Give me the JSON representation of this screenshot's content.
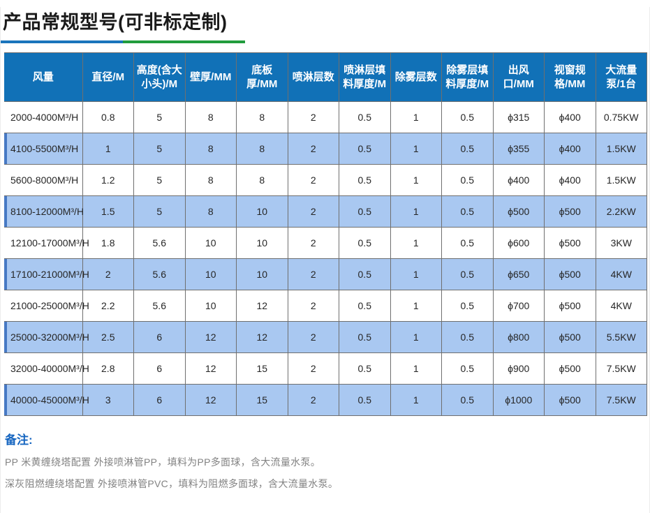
{
  "page": {
    "title": "产品常规型号(可非标定制)"
  },
  "table": {
    "columns": [
      "风量",
      "直径/M",
      "高度(含大小头)/M",
      "壁厚/MM",
      "底板厚/MM",
      "喷淋层数",
      "喷淋层填料厚度/M",
      "除雾层数",
      "除雾层填料厚度/M",
      "出风口/MM",
      "视窗规格/MM",
      "大流量泵/1台"
    ],
    "rows": [
      [
        "2000-4000M³/H",
        "0.8",
        "5",
        "8",
        "8",
        "2",
        "0.5",
        "1",
        "0.5",
        "ϕ315",
        "ϕ400",
        "0.75KW"
      ],
      [
        "4100-5500M³/H",
        "1",
        "5",
        "8",
        "8",
        "2",
        "0.5",
        "1",
        "0.5",
        "ϕ355",
        "ϕ400",
        "1.5KW"
      ],
      [
        "5600-8000M³/H",
        "1.2",
        "5",
        "8",
        "8",
        "2",
        "0.5",
        "1",
        "0.5",
        "ϕ400",
        "ϕ400",
        "1.5KW"
      ],
      [
        "8100-12000M³/H",
        "1.5",
        "5",
        "8",
        "10",
        "2",
        "0.5",
        "1",
        "0.5",
        "ϕ500",
        "ϕ500",
        "2.2KW"
      ],
      [
        "12100-17000M³/H",
        "1.8",
        "5.6",
        "10",
        "10",
        "2",
        "0.5",
        "1",
        "0.5",
        "ϕ600",
        "ϕ500",
        "3KW"
      ],
      [
        "17100-21000M³/H",
        "2",
        "5.6",
        "10",
        "10",
        "2",
        "0.5",
        "1",
        "0.5",
        "ϕ650",
        "ϕ500",
        "4KW"
      ],
      [
        "21000-25000M³/H",
        "2.2",
        "5.6",
        "10",
        "12",
        "2",
        "0.5",
        "1",
        "0.5",
        "ϕ700",
        "ϕ500",
        "4KW"
      ],
      [
        "25000-32000M³/H",
        "2.5",
        "6",
        "12",
        "12",
        "2",
        "0.5",
        "1",
        "0.5",
        "ϕ800",
        "ϕ500",
        "5.5KW"
      ],
      [
        "32000-40000M³/H",
        "2.8",
        "6",
        "12",
        "15",
        "2",
        "0.5",
        "1",
        "0.5",
        "ϕ900",
        "ϕ500",
        "7.5KW"
      ],
      [
        "40000-45000M³/H",
        "3",
        "6",
        "12",
        "15",
        "2",
        "0.5",
        "1",
        "0.5",
        "ϕ1000",
        "ϕ500",
        "7.5KW"
      ]
    ]
  },
  "remarks": {
    "title": "备注:",
    "lines": [
      "PP 米黄缠绕塔配置 外接喷淋管PP，填料为PP多面球，含大流量水泵。",
      "深灰阻燃缠绕塔配置 外接喷淋管PVC，填料为阻燃多面球，含大流量水泵。"
    ]
  },
  "colors": {
    "header_bg": "#1171b7",
    "row_alt_bg": "#a9c8f1",
    "row_alt_accent": "#4779c4",
    "underline_blue": "#1b75bc",
    "underline_green": "#219c3d",
    "remark_title": "#1565c0"
  }
}
